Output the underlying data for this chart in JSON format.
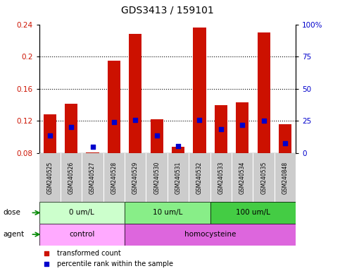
{
  "title": "GDS3413 / 159101",
  "samples": [
    "GSM240525",
    "GSM240526",
    "GSM240527",
    "GSM240528",
    "GSM240529",
    "GSM240530",
    "GSM240531",
    "GSM240532",
    "GSM240533",
    "GSM240534",
    "GSM240535",
    "GSM240848"
  ],
  "red_values": [
    0.128,
    0.141,
    0.081,
    0.195,
    0.228,
    0.122,
    0.088,
    0.236,
    0.14,
    0.143,
    0.23,
    0.116
  ],
  "blue_values": [
    0.102,
    0.112,
    0.088,
    0.119,
    0.121,
    0.102,
    0.089,
    0.121,
    0.11,
    0.115,
    0.12,
    0.092
  ],
  "ylim_left": [
    0.08,
    0.24
  ],
  "ylim_right": [
    0,
    100
  ],
  "yticks_left": [
    0.08,
    0.12,
    0.16,
    0.2,
    0.24
  ],
  "yticks_right": [
    0,
    25,
    50,
    75,
    100
  ],
  "ytick_labels_left": [
    "0.08",
    "0.12",
    "0.16",
    "0.2",
    "0.24"
  ],
  "ytick_labels_right": [
    "0",
    "25",
    "50",
    "75",
    "100%"
  ],
  "dose_groups": [
    {
      "label": "0 um/L",
      "start": 0,
      "end": 3
    },
    {
      "label": "10 um/L",
      "start": 4,
      "end": 7
    },
    {
      "label": "100 um/L",
      "start": 8,
      "end": 11
    }
  ],
  "dose_colors": [
    "#ccffcc",
    "#88ee88",
    "#44cc44"
  ],
  "agent_groups": [
    {
      "label": "control",
      "start": 0,
      "end": 3
    },
    {
      "label": "homocysteine",
      "start": 4,
      "end": 11
    }
  ],
  "agent_colors": [
    "#ffaaff",
    "#dd66dd"
  ],
  "bar_color": "#cc1100",
  "dot_color": "#0000cc",
  "background_color": "#ffffff",
  "tick_label_color_left": "#cc1100",
  "tick_label_color_right": "#0000cc",
  "bar_width": 0.6,
  "legend_items": [
    {
      "color": "#cc1100",
      "label": "transformed count"
    },
    {
      "color": "#0000cc",
      "label": "percentile rank within the sample"
    }
  ],
  "sample_box_color": "#cccccc",
  "arrow_color": "#008800",
  "grid_ticks": [
    0.12,
    0.16,
    0.2
  ]
}
